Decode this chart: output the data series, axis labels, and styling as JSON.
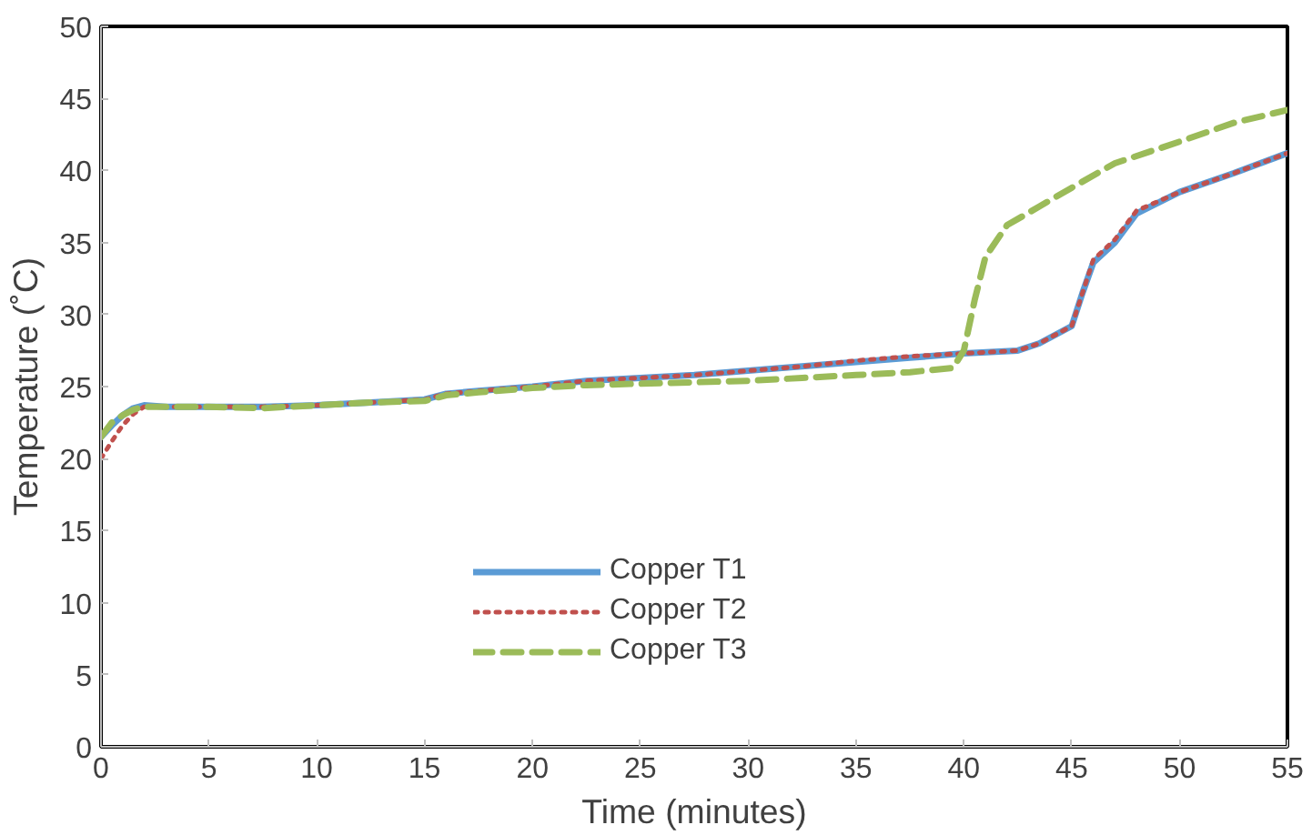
{
  "chart_data": {
    "type": "line",
    "xlabel": "Time (minutes)",
    "ylabel": "Temperature (˚C)",
    "xlim": [
      0,
      55
    ],
    "ylim": [
      0,
      50
    ],
    "xticks": [
      0,
      5,
      10,
      15,
      20,
      25,
      30,
      35,
      40,
      45,
      50,
      55
    ],
    "yticks": [
      0,
      5,
      10,
      15,
      20,
      25,
      30,
      35,
      40,
      45,
      50
    ],
    "grid": false,
    "legend": "bottom",
    "series": [
      {
        "name": "Copper T1",
        "color": "#5b9bd5",
        "line_style": "solid",
        "x": [
          0,
          0.5,
          1,
          1.5,
          2,
          3,
          5,
          7.5,
          10,
          12.5,
          15,
          16,
          17.5,
          20,
          22.5,
          25,
          27.5,
          30,
          32.5,
          35,
          37.5,
          40,
          42.5,
          43.5,
          45,
          45.5,
          46,
          47,
          48,
          50,
          52.5,
          55
        ],
        "values": [
          21.5,
          22.3,
          23,
          23.5,
          23.7,
          23.6,
          23.6,
          23.6,
          23.7,
          23.9,
          24.1,
          24.5,
          24.7,
          25.0,
          25.4,
          25.6,
          25.8,
          26.1,
          26.4,
          26.7,
          27.0,
          27.3,
          27.5,
          28.0,
          29.2,
          31.5,
          33.6,
          35.0,
          37.0,
          38.5,
          39.8,
          41.2
        ]
      },
      {
        "name": "Copper T2",
        "color": "#c0504d",
        "line_style": "dotted",
        "x": [
          0,
          0.5,
          1,
          1.5,
          2,
          3,
          5,
          7.5,
          10,
          12.5,
          15,
          16,
          17.5,
          20,
          22.5,
          25,
          27.5,
          30,
          32.5,
          35,
          37.5,
          40,
          42.5,
          43.5,
          45,
          45.5,
          46,
          47,
          48,
          50,
          52.5,
          55
        ],
        "values": [
          20.0,
          21.2,
          22.3,
          23.1,
          23.6,
          23.6,
          23.6,
          23.6,
          23.7,
          23.9,
          24.1,
          24.5,
          24.7,
          25.0,
          25.4,
          25.6,
          25.8,
          26.1,
          26.4,
          26.8,
          27.1,
          27.3,
          27.5,
          28.0,
          29.2,
          31.5,
          33.8,
          35.2,
          37.2,
          38.5,
          39.8,
          41.2
        ]
      },
      {
        "name": "Copper T3",
        "color": "#9bbb59",
        "line_style": "dashed",
        "x": [
          0,
          0.5,
          1,
          1.5,
          2,
          3,
          5,
          7.5,
          10,
          12.5,
          15,
          16,
          17.5,
          20,
          22.5,
          25,
          27.5,
          30,
          32.5,
          35,
          37.5,
          39.5,
          40,
          40.5,
          41,
          42,
          43.5,
          45,
          47,
          50,
          52.5,
          55
        ],
        "values": [
          21.5,
          22.5,
          23,
          23.4,
          23.6,
          23.6,
          23.6,
          23.5,
          23.7,
          23.9,
          24.0,
          24.4,
          24.6,
          24.9,
          25.1,
          25.2,
          25.3,
          25.4,
          25.6,
          25.8,
          26.0,
          26.3,
          27.5,
          31,
          34,
          36.2,
          37.5,
          38.8,
          40.5,
          42,
          43.3,
          44.2
        ]
      }
    ]
  }
}
